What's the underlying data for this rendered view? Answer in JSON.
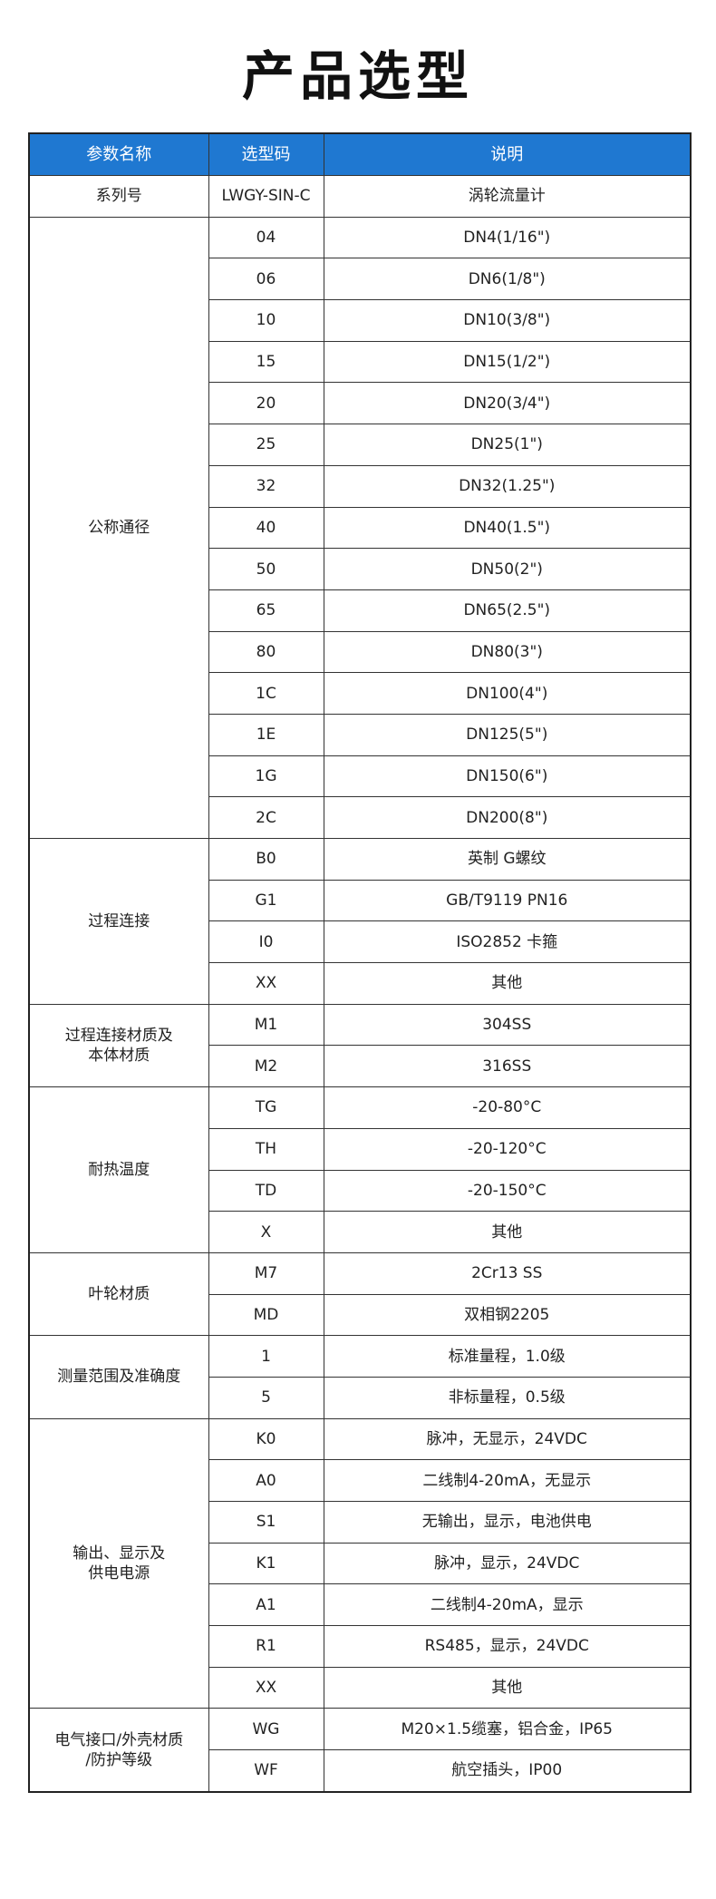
{
  "title": "产品选型",
  "header": {
    "col1": "参数名称",
    "col2": "选型码",
    "col3": "说明",
    "bg_color": "#1f78d1"
  },
  "groups": [
    {
      "name": "系列号",
      "rows": [
        {
          "code": "LWGY-SIN-C",
          "desc": "涡轮流量计"
        }
      ]
    },
    {
      "name": "公称通径",
      "rows": [
        {
          "code": "04",
          "desc": "DN4(1/16\")"
        },
        {
          "code": "06",
          "desc": "DN6(1/8\")"
        },
        {
          "code": "10",
          "desc": "DN10(3/8\")"
        },
        {
          "code": "15",
          "desc": "DN15(1/2\")"
        },
        {
          "code": "20",
          "desc": "DN20(3/4\")"
        },
        {
          "code": "25",
          "desc": "DN25(1\")"
        },
        {
          "code": "32",
          "desc": "DN32(1.25\")"
        },
        {
          "code": "40",
          "desc": "DN40(1.5\")"
        },
        {
          "code": "50",
          "desc": "DN50(2\")"
        },
        {
          "code": "65",
          "desc": "DN65(2.5\")"
        },
        {
          "code": "80",
          "desc": "DN80(3\")"
        },
        {
          "code": "1C",
          "desc": "DN100(4\")"
        },
        {
          "code": "1E",
          "desc": "DN125(5\")"
        },
        {
          "code": "1G",
          "desc": "DN150(6\")"
        },
        {
          "code": "2C",
          "desc": "DN200(8\")"
        }
      ]
    },
    {
      "name": "过程连接",
      "rows": [
        {
          "code": "B0",
          "desc": "英制 G螺纹"
        },
        {
          "code": "G1",
          "desc": "GB/T9119 PN16"
        },
        {
          "code": "I0",
          "desc": "ISO2852 卡箍"
        },
        {
          "code": "XX",
          "desc": "其他"
        }
      ]
    },
    {
      "name": "过程连接材质及\n本体材质",
      "rows": [
        {
          "code": "M1",
          "desc": "304SS"
        },
        {
          "code": "M2",
          "desc": "316SS"
        }
      ]
    },
    {
      "name": "耐热温度",
      "rows": [
        {
          "code": "TG",
          "desc": "-20-80°C"
        },
        {
          "code": "TH",
          "desc": "-20-120°C"
        },
        {
          "code": "TD",
          "desc": "-20-150°C"
        },
        {
          "code": "X",
          "desc": "其他"
        }
      ]
    },
    {
      "name": "叶轮材质",
      "rows": [
        {
          "code": "M7",
          "desc": "2Cr13 SS"
        },
        {
          "code": "MD",
          "desc": "双相钢2205"
        }
      ]
    },
    {
      "name": "测量范围及准确度",
      "rows": [
        {
          "code": "1",
          "desc": "标准量程，1.0级"
        },
        {
          "code": "5",
          "desc": "非标量程，0.5级"
        }
      ]
    },
    {
      "name": "输出、显示及\n供电电源",
      "rows": [
        {
          "code": "K0",
          "desc": "脉冲，无显示，24VDC"
        },
        {
          "code": "A0",
          "desc": "二线制4-20mA，无显示"
        },
        {
          "code": "S1",
          "desc": "无输出，显示，电池供电"
        },
        {
          "code": "K1",
          "desc": "脉冲，显示，24VDC"
        },
        {
          "code": "A1",
          "desc": "二线制4-20mA，显示"
        },
        {
          "code": "R1",
          "desc": "RS485，显示，24VDC"
        },
        {
          "code": "XX",
          "desc": "其他"
        }
      ]
    },
    {
      "name": "电气接口/外壳材质\n/防护等级",
      "rows": [
        {
          "code": "WG",
          "desc": "M20×1.5缆塞，铝合金，IP65"
        },
        {
          "code": "WF",
          "desc": "航空插头，IP00"
        }
      ]
    }
  ]
}
